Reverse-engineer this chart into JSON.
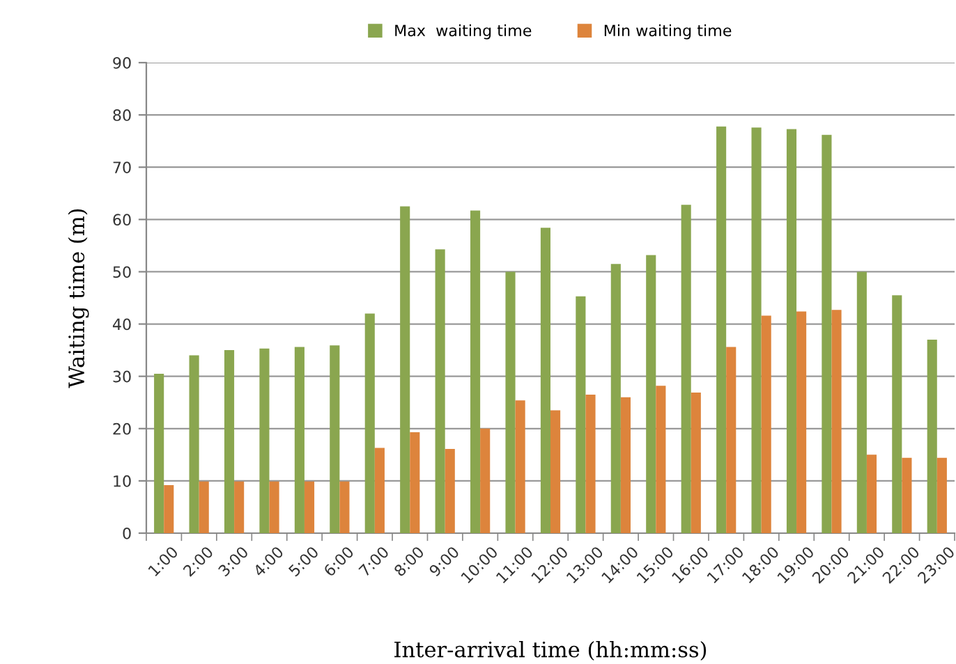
{
  "chart_data": {
    "type": "bar",
    "xlabel": "Inter-arrival time (hh:mm:ss)",
    "ylabel": "Waiting time (m)",
    "categories": [
      "1:00",
      "2:00",
      "3:00",
      "4:00",
      "5:00",
      "6:00",
      "7:00",
      "8:00",
      "9:00",
      "10:00",
      "11:00",
      "12:00",
      "13:00",
      "14:00",
      "15:00",
      "16:00",
      "17:00",
      "18:00",
      "19:00",
      "20:00",
      "21:00",
      "22:00",
      "23:00"
    ],
    "series": [
      {
        "name": "Max  waiting time",
        "color": "#8aa64f",
        "values": [
          30.5,
          34,
          35,
          35.3,
          35.6,
          35.9,
          42,
          62.5,
          54.3,
          61.7,
          50,
          58.4,
          45.3,
          51.5,
          53.2,
          62.8,
          77.8,
          77.6,
          77.3,
          76.2,
          50,
          45.5,
          37
        ]
      },
      {
        "name": "Min waiting time",
        "color": "#dd843c",
        "values": [
          9.2,
          9.9,
          9.9,
          9.9,
          9.9,
          9.9,
          16.3,
          19.3,
          16.1,
          20,
          25.4,
          23.5,
          26.5,
          26,
          28.2,
          26.9,
          35.6,
          41.6,
          42.4,
          42.7,
          15,
          14.4,
          14.4
        ]
      }
    ],
    "ylim": [
      0,
      90
    ],
    "yticks": [
      0,
      10,
      20,
      30,
      40,
      50,
      60,
      70,
      80,
      90
    ],
    "grid": "y",
    "legend": "top"
  }
}
